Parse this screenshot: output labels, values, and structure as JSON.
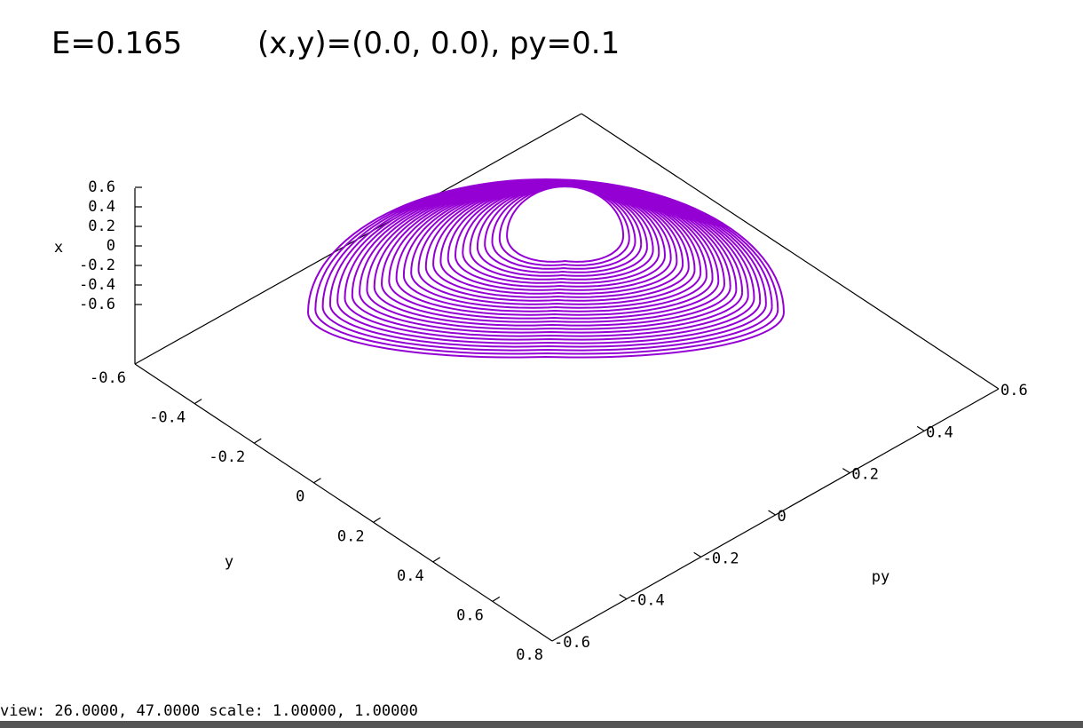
{
  "header": {
    "energy": "E=0.165",
    "conditions": "(x,y)=(0.0, 0.0), py=0.1"
  },
  "axes": {
    "x": {
      "label": "x",
      "ticks": [
        "0.6",
        "0.4",
        "0.2",
        "0",
        "-0.2",
        "-0.4",
        "-0.6"
      ]
    },
    "y": {
      "label": "y",
      "ticks": [
        "-0.6",
        "-0.4",
        "-0.2",
        "0",
        "0.2",
        "0.4",
        "0.6",
        "0.8"
      ]
    },
    "py": {
      "label": "py",
      "ticks": [
        "-0.6",
        "-0.4",
        "-0.2",
        "0",
        "0.2",
        "0.4",
        "0.6"
      ]
    }
  },
  "status": "view:  26.0000,  47.0000   scale:  1.00000,  1.00000"
}
